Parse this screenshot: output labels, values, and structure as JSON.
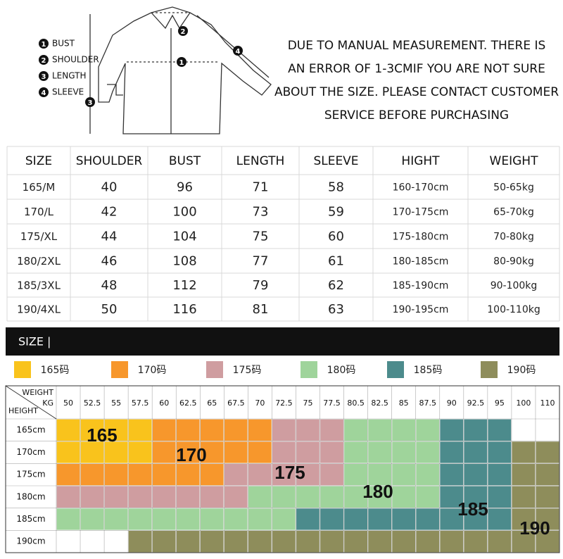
{
  "legend": [
    {
      "num": "1",
      "label": "BUST"
    },
    {
      "num": "2",
      "label": "SHOULDER"
    },
    {
      "num": "3",
      "label": "LENGTH"
    },
    {
      "num": "4",
      "label": "SLEEVE"
    }
  ],
  "note": [
    "DUE TO MANUAL MEASUREMENT. THERE IS",
    "AN ERROR OF 1-3CMIF YOU ARE NOT SURE",
    "ABOUT THE SIZE. PLEASE CONTACT CUSTOMER",
    "SERVICE BEFORE PURCHASING"
  ],
  "table": {
    "header": [
      "SIZE",
      "SHOULDER",
      "BUST",
      "LENGTH",
      "SLEEVE",
      "HIGHT",
      "WEIGHT"
    ],
    "rows": [
      [
        "165/M",
        "40",
        "96",
        "71",
        "58",
        "160-170cm",
        "50-65kg"
      ],
      [
        "170/L",
        "42",
        "100",
        "73",
        "59",
        "170-175cm",
        "65-70kg"
      ],
      [
        "175/XL",
        "44",
        "104",
        "75",
        "60",
        "175-180cm",
        "70-80kg"
      ],
      [
        "180/2XL",
        "46",
        "108",
        "77",
        "61",
        "180-185cm",
        "80-90kg"
      ],
      [
        "185/3XL",
        "48",
        "112",
        "79",
        "62",
        "185-190cm",
        "90-100kg"
      ],
      [
        "190/4XL",
        "50",
        "116",
        "81",
        "63",
        "190-195cm",
        "100-110kg"
      ]
    ]
  },
  "bar_title": "SIZE |",
  "sizes": [
    {
      "label": "165码",
      "code": "165",
      "color": "#f9c31c"
    },
    {
      "label": "170码",
      "code": "170",
      "color": "#f7972c"
    },
    {
      "label": "175码",
      "code": "175",
      "color": "#cf9da0"
    },
    {
      "label": "180码",
      "code": "180",
      "color": "#9fd49b"
    },
    {
      "label": "185码",
      "code": "185",
      "color": "#4c8b8c"
    },
    {
      "label": "190码",
      "code": "190",
      "color": "#8e8d5b"
    }
  ],
  "grid": {
    "weight_label": "WEIGHT",
    "unit_label": "KG",
    "height_label": "HEIGHT",
    "weights": [
      "50",
      "52.5",
      "55",
      "57.5",
      "60",
      "62.5",
      "65",
      "67.5",
      "70",
      "72.5",
      "75",
      "77.5",
      "80.5",
      "82.5",
      "85",
      "87.5",
      "90",
      "92.5",
      "95",
      "100",
      "110"
    ],
    "heights": [
      "165cm",
      "170cm",
      "175cm",
      "180cm",
      "185cm",
      "190cm"
    ],
    "cells": [
      [
        0,
        0,
        0,
        0,
        1,
        1,
        1,
        1,
        1,
        2,
        2,
        2,
        3,
        3,
        3,
        3,
        4,
        4,
        4,
        null,
        null
      ],
      [
        0,
        0,
        0,
        0,
        1,
        1,
        1,
        1,
        1,
        2,
        2,
        2,
        3,
        3,
        3,
        3,
        4,
        4,
        4,
        5,
        5
      ],
      [
        1,
        1,
        1,
        1,
        1,
        1,
        1,
        2,
        2,
        2,
        2,
        2,
        3,
        3,
        3,
        3,
        4,
        4,
        4,
        5,
        5
      ],
      [
        2,
        2,
        2,
        2,
        2,
        2,
        2,
        2,
        3,
        3,
        3,
        3,
        3,
        3,
        3,
        3,
        4,
        4,
        4,
        5,
        5
      ],
      [
        3,
        3,
        3,
        3,
        3,
        3,
        3,
        3,
        3,
        3,
        4,
        4,
        4,
        4,
        4,
        4,
        4,
        4,
        4,
        5,
        5
      ],
      [
        null,
        null,
        null,
        5,
        5,
        5,
        5,
        5,
        5,
        5,
        5,
        5,
        5,
        5,
        5,
        5,
        5,
        5,
        5,
        5,
        5
      ]
    ]
  }
}
